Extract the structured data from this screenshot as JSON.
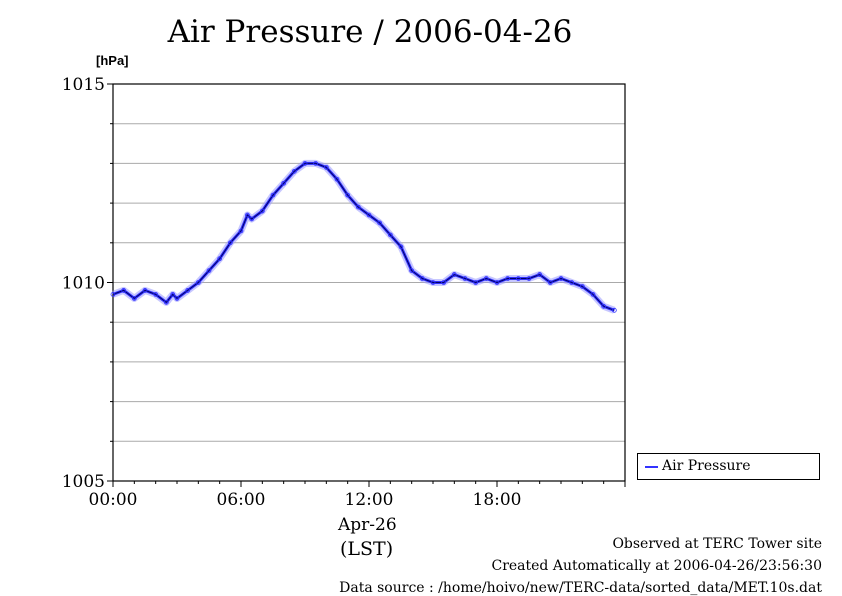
{
  "chart_data": {
    "type": "line",
    "title": "Air Pressure / 2006-04-26",
    "ylabel_unit": "[hPa]",
    "xlabel_date": "Apr-26",
    "xlabel_unit": "(LST)",
    "ylim": [
      1005,
      1015
    ],
    "xlim": [
      0,
      24
    ],
    "y_ticks": [
      1005,
      1010,
      1015
    ],
    "x_ticks": [
      0,
      6,
      12,
      18
    ],
    "x_tick_labels": [
      "00:00",
      "06:00",
      "12:00",
      "18:00"
    ],
    "grid": true,
    "legend_position": "right, outside plot",
    "series": [
      {
        "name": "Air Pressure",
        "color": "#3333ff",
        "x": [
          0,
          0.5,
          1.0,
          1.5,
          2.0,
          2.5,
          2.8,
          3.0,
          3.5,
          4.0,
          4.5,
          5.0,
          5.5,
          6.0,
          6.3,
          6.5,
          7.0,
          7.5,
          8.0,
          8.5,
          9.0,
          9.5,
          10.0,
          10.5,
          11.0,
          11.5,
          12.0,
          12.5,
          13.0,
          13.5,
          14.0,
          14.5,
          15.0,
          15.5,
          16.0,
          16.5,
          17.0,
          17.5,
          18.0,
          18.5,
          19.0,
          19.5,
          20.0,
          20.5,
          21.0,
          21.5,
          22.0,
          22.5,
          23.0,
          23.5
        ],
        "y": [
          1009.7,
          1009.8,
          1009.6,
          1009.8,
          1009.7,
          1009.5,
          1009.7,
          1009.6,
          1009.8,
          1010.0,
          1010.3,
          1010.6,
          1011.0,
          1011.3,
          1011.7,
          1011.6,
          1011.8,
          1012.2,
          1012.5,
          1012.8,
          1013.0,
          1013.0,
          1012.9,
          1012.6,
          1012.2,
          1011.9,
          1011.7,
          1011.5,
          1011.2,
          1010.9,
          1010.3,
          1010.1,
          1010.0,
          1010.0,
          1010.2,
          1010.1,
          1010.0,
          1010.1,
          1010.0,
          1010.1,
          1010.1,
          1010.1,
          1010.2,
          1010.0,
          1010.1,
          1010.0,
          1009.9,
          1009.7,
          1009.4,
          1009.3
        ]
      }
    ]
  },
  "legend": {
    "label": "Air Pressure"
  },
  "footer": {
    "line1": "Observed at TERC Tower site",
    "line2": "Created Automatically at 2006-04-26/23:56:30",
    "line3": "Data source : /home/hoivo/new/TERC-data/sorted_data/MET.10s.dat"
  }
}
